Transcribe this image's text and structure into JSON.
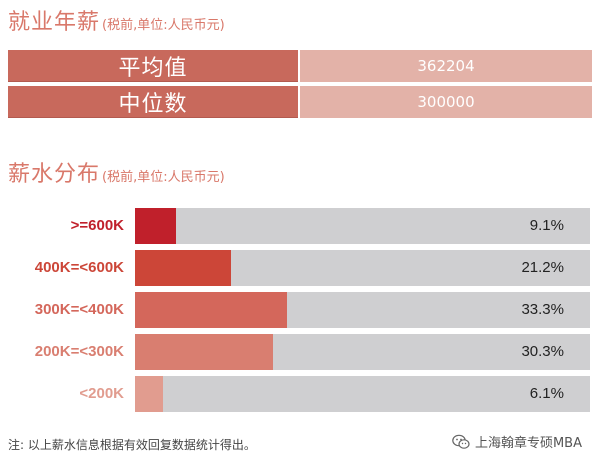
{
  "section1": {
    "title": "就业年薪",
    "subtitle": "(税前,单位:人民币元)"
  },
  "salary": [
    {
      "label": "平均值",
      "value": "362204"
    },
    {
      "label": "中位数",
      "value": "300000"
    }
  ],
  "section2": {
    "title": "薪水分布",
    "subtitle": "(税前,单位:人民币元)"
  },
  "chart_data": {
    "type": "bar",
    "orientation": "horizontal",
    "categories": [
      ">=600K",
      "400K=<600K",
      "300K=<400K",
      "200K=<300K",
      "<200K"
    ],
    "values": [
      9.1,
      21.2,
      33.3,
      30.3,
      6.1
    ],
    "value_labels": [
      "9.1%",
      "21.2%",
      "33.3%",
      "30.3%",
      "6.1%"
    ],
    "unit": "%",
    "xlim": [
      0,
      100
    ],
    "bar_colors": [
      "#c0202b",
      "#cc4638",
      "#d4675b",
      "#d97e70",
      "#e19c8f"
    ],
    "label_colors": [
      "#c0202b",
      "#cc4638",
      "#d4675b",
      "#d97e70",
      "#e19c8f"
    ],
    "track_color": "#cfcfd1"
  },
  "note": "注: 以上薪水信息根据有效回复数据统计得出。",
  "watermark": {
    "text": "上海翰章专硕MBA",
    "icon": "wechat-icon"
  },
  "colors": {
    "accent": "#d9786a",
    "table_label_bg": "#c8695c",
    "table_value_bg": "#e3b2a8"
  }
}
